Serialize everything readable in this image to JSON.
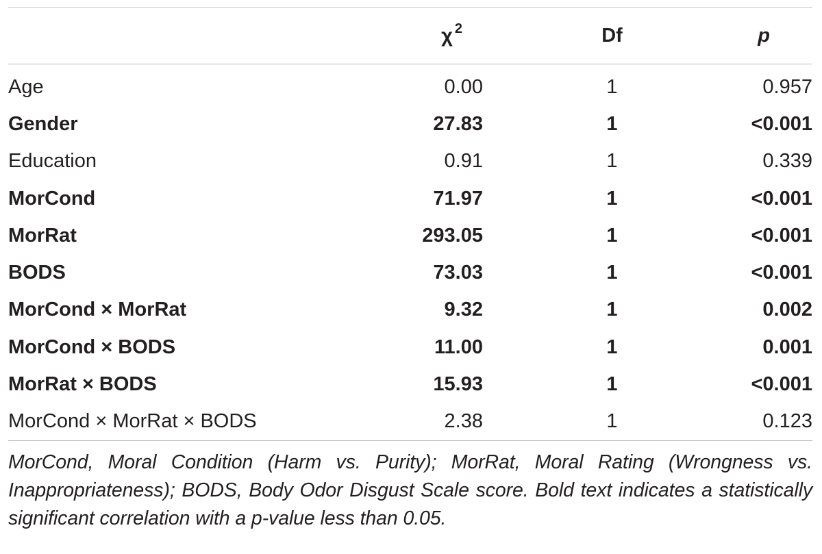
{
  "table": {
    "headers": {
      "label": "",
      "chi_symbol": "χ",
      "chi_superscript": "2",
      "df": "Df",
      "p": "p"
    },
    "rows": [
      {
        "label": "Age",
        "chi2": "0.00",
        "df": "1",
        "p": "0.957",
        "significant": false
      },
      {
        "label": "Gender",
        "chi2": "27.83",
        "df": "1",
        "p": "<0.001",
        "significant": true
      },
      {
        "label": "Education",
        "chi2": "0.91",
        "df": "1",
        "p": "0.339",
        "significant": false
      },
      {
        "label": "MorCond",
        "chi2": "71.97",
        "df": "1",
        "p": "<0.001",
        "significant": true
      },
      {
        "label": "MorRat",
        "chi2": "293.05",
        "df": "1",
        "p": "<0.001",
        "significant": true
      },
      {
        "label": "BODS",
        "chi2": "73.03",
        "df": "1",
        "p": "<0.001",
        "significant": true
      },
      {
        "label": "MorCond × MorRat",
        "chi2": "9.32",
        "df": "1",
        "p": "0.002",
        "significant": true
      },
      {
        "label": "MorCond × BODS",
        "chi2": "11.00",
        "df": "1",
        "p": "0.001",
        "significant": true
      },
      {
        "label": "MorRat × BODS",
        "chi2": "15.93",
        "df": "1",
        "p": "<0.001",
        "significant": true
      },
      {
        "label": "MorCond × MorRat × BODS",
        "chi2": "2.38",
        "df": "1",
        "p": "0.123",
        "significant": false
      }
    ]
  },
  "footnote": "MorCond, Moral Condition (Harm vs. Purity); MorRat, Moral Rating (Wrongness vs. Inappropriateness); BODS, Body Odor Disgust Scale score. Bold text indicates a statistically significant correlation with a p-value less than 0.05."
}
